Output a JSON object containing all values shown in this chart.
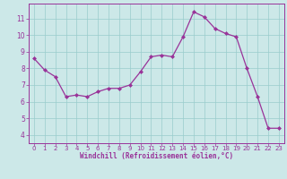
{
  "x": [
    0,
    1,
    2,
    3,
    4,
    5,
    6,
    7,
    8,
    9,
    10,
    11,
    12,
    13,
    14,
    15,
    16,
    17,
    18,
    19,
    20,
    21,
    22,
    23
  ],
  "y": [
    8.6,
    7.9,
    7.5,
    6.3,
    6.4,
    6.3,
    6.6,
    6.8,
    6.8,
    7.0,
    7.8,
    8.7,
    8.8,
    8.7,
    9.9,
    11.4,
    11.1,
    10.4,
    10.1,
    9.9,
    8.0,
    6.3,
    4.4,
    4.4
  ],
  "xlim": [
    -0.5,
    23.5
  ],
  "ylim": [
    3.5,
    11.9
  ],
  "yticks": [
    4,
    5,
    6,
    7,
    8,
    9,
    10,
    11
  ],
  "xticks": [
    0,
    1,
    2,
    3,
    4,
    5,
    6,
    7,
    8,
    9,
    10,
    11,
    12,
    13,
    14,
    15,
    16,
    17,
    18,
    19,
    20,
    21,
    22,
    23
  ],
  "xlabel": "Windchill (Refroidissement éolien,°C)",
  "line_color": "#993399",
  "marker_color": "#993399",
  "bg_color": "#cce8e8",
  "grid_color": "#99cccc",
  "axis_color": "#993399",
  "tick_color": "#993399",
  "label_color": "#993399"
}
